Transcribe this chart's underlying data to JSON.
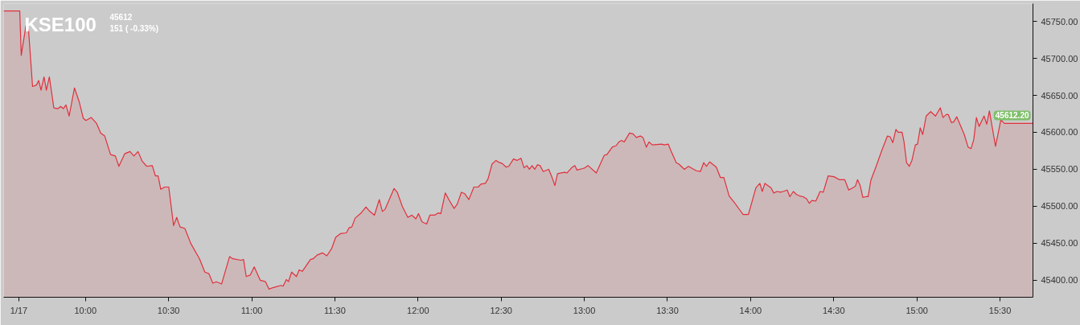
{
  "chart_data": {
    "type": "area",
    "title": "KSE100",
    "annotations": [
      "45612",
      "151 ( -0.33%)",
      {
        "text": "45612.20",
        "x": 15.698,
        "y": 45612
      }
    ],
    "color": "#e0303c",
    "x": [
      9.508,
      9.605,
      9.614,
      9.642,
      9.658,
      9.682,
      9.706,
      9.719,
      9.733,
      9.751,
      9.765,
      9.783,
      9.81,
      9.835,
      9.851,
      9.867,
      9.883,
      9.902,
      9.934,
      9.963,
      9.987,
      10.003,
      10.035,
      10.067,
      10.092,
      10.116,
      10.151,
      10.18,
      10.201,
      10.236,
      10.268,
      10.292,
      10.316,
      10.341,
      10.369,
      10.402,
      10.421,
      10.437,
      10.453,
      10.477,
      10.501,
      10.53,
      10.549,
      10.569,
      10.598,
      10.633,
      10.686,
      10.718,
      10.742,
      10.766,
      10.787,
      10.819,
      10.867,
      10.887,
      10.935,
      10.951,
      10.967,
      10.991,
      11.015,
      11.051,
      11.083,
      11.104,
      11.128,
      11.176,
      11.189,
      11.208,
      11.221,
      11.24,
      11.269,
      11.285,
      11.304,
      11.353,
      11.369,
      11.393,
      11.425,
      11.452,
      11.481,
      11.505,
      11.533,
      11.569,
      11.586,
      11.602,
      11.622,
      11.658,
      11.687,
      11.706,
      11.738,
      11.767,
      11.786,
      11.802,
      11.856,
      11.875,
      11.907,
      11.939,
      11.963,
      11.987,
      12.003,
      12.024,
      12.052,
      12.071,
      12.1,
      12.121,
      12.137,
      12.164,
      12.188,
      12.217,
      12.236,
      12.261,
      12.281,
      12.306,
      12.336,
      12.362,
      12.378,
      12.405,
      12.421,
      12.445,
      12.469,
      12.49,
      12.506,
      12.53,
      12.546,
      12.574,
      12.595,
      12.619,
      12.638,
      12.654,
      12.67,
      12.686,
      12.702,
      12.718,
      12.734,
      12.753,
      12.786,
      12.806,
      12.823,
      12.839,
      12.882,
      12.895,
      12.924,
      12.943,
      12.956,
      12.991,
      13.004,
      13.023,
      13.072,
      13.096,
      13.12,
      13.136,
      13.168,
      13.192,
      13.208,
      13.224,
      13.24,
      13.256,
      13.272,
      13.293,
      13.313,
      13.337,
      13.353,
      13.373,
      13.389,
      13.409,
      13.465,
      13.481,
      13.505,
      13.521,
      13.553,
      13.569,
      13.602,
      13.626,
      13.674,
      13.698,
      13.718,
      13.734,
      13.754,
      13.794,
      13.818,
      13.839,
      13.871,
      13.906,
      13.935,
      13.955,
      13.987,
      14.032,
      14.056,
      14.07,
      14.086,
      14.123,
      14.139,
      14.16,
      14.18,
      14.196,
      14.22,
      14.236,
      14.257,
      14.276,
      14.295,
      14.316,
      14.337,
      14.353,
      14.369,
      14.392,
      14.418,
      14.437,
      14.466,
      14.501,
      14.533,
      14.566,
      14.59,
      14.614,
      14.63,
      14.643,
      14.659,
      14.675,
      14.694,
      14.707,
      14.723,
      14.755,
      14.79,
      14.823,
      14.839,
      14.855,
      14.874,
      14.887,
      14.911,
      14.922,
      14.938,
      14.954,
      14.97,
      14.991,
      15.004,
      15.02,
      15.035,
      15.056,
      15.083,
      15.112,
      15.141,
      15.157,
      15.176,
      15.189,
      15.208,
      15.221,
      15.24,
      15.285,
      15.308,
      15.326,
      15.342,
      15.358,
      15.374,
      15.404,
      15.42,
      15.436,
      15.473,
      15.505,
      15.526,
      15.698
    ],
    "values": [
      45764,
      45764,
      45704,
      45744,
      45738,
      45662,
      45664,
      45670,
      45657,
      45675,
      45657,
      45675,
      45633,
      45632,
      45635,
      45632,
      45637,
      45622,
      45660,
      45641,
      45619,
      45616,
      45620,
      45612,
      45599,
      45595,
      45570,
      45568,
      45554,
      45571,
      45574,
      45568,
      45574,
      45561,
      45554,
      45555,
      45541,
      45541,
      45523,
      45526,
      45526,
      45474,
      45485,
      45472,
      45470,
      45450,
      45429,
      45411,
      45409,
      45396,
      45398,
      45395,
      45432,
      45429,
      45427,
      45428,
      45405,
      45407,
      45418,
      45400,
      45398,
      45388,
      45390,
      45393,
      45392,
      45401,
      45398,
      45411,
      45405,
      45414,
      45412,
      45428,
      45429,
      45434,
      45437,
      45433,
      45443,
      45458,
      45463,
      45464,
      45471,
      45472,
      45484,
      45491,
      45499,
      45494,
      45488,
      45509,
      45493,
      45496,
      45524,
      45519,
      45499,
      45485,
      45488,
      45483,
      45490,
      45479,
      45476,
      45488,
      45488,
      45491,
      45490,
      45518,
      45508,
      45497,
      45503,
      45519,
      45517,
      45509,
      45526,
      45526,
      45530,
      45531,
      45537,
      45557,
      45562,
      45559,
      45558,
      45553,
      45554,
      45564,
      45562,
      45565,
      45552,
      45555,
      45550,
      45555,
      45550,
      45556,
      45555,
      45547,
      45550,
      45539,
      45528,
      45544,
      45546,
      45545,
      45552,
      45555,
      45549,
      45551,
      45552,
      45555,
      45545,
      45557,
      45569,
      45570,
      45580,
      45582,
      45587,
      45589,
      45587,
      45593,
      45599,
      45598,
      45593,
      45595,
      45593,
      45580,
      45587,
      45583,
      45584,
      45583,
      45584,
      45575,
      45559,
      45557,
      45550,
      45554,
      45548,
      45547,
      45559,
      45554,
      45560,
      45553,
      45539,
      45539,
      45514,
      45504,
      45495,
      45489,
      45489,
      45525,
      45531,
      45520,
      45531,
      45525,
      45518,
      45520,
      45519,
      45520,
      45522,
      45513,
      45520,
      45516,
      45514,
      45513,
      45510,
      45504,
      45508,
      45507,
      45520,
      45519,
      45541,
      45540,
      45536,
      45536,
      45522,
      45525,
      45527,
      45536,
      45528,
      45512,
      45513,
      45513,
      45535,
      45554,
      45576,
      45595,
      45594,
      45586,
      45604,
      45600,
      45600,
      45588,
      45559,
      45554,
      45562,
      45583,
      45584,
      45606,
      45597,
      45622,
      45628,
      45622,
      45633,
      45620,
      45624,
      45624,
      45613,
      45614,
      45621,
      45597,
      45580,
      45578,
      45590,
      45620,
      45608,
      45622,
      45611,
      45629,
      45581,
      45617,
      45612,
      45612
    ],
    "xlim": [
      9.508,
      15.698
    ],
    "ylim": [
      45377,
      45774
    ],
    "xticks": [
      {
        "value": 9.6,
        "label": "1/17"
      },
      {
        "value": 10,
        "label": "10:00"
      },
      {
        "value": 10.5,
        "label": "10:30"
      },
      {
        "value": 11,
        "label": "11:00"
      },
      {
        "value": 11.5,
        "label": "11:30"
      },
      {
        "value": 12,
        "label": "12:00"
      },
      {
        "value": 12.5,
        "label": "12:30"
      },
      {
        "value": 13,
        "label": "13:00"
      },
      {
        "value": 13.5,
        "label": "13:30"
      },
      {
        "value": 14,
        "label": "14:00"
      },
      {
        "value": 14.5,
        "label": "14:30"
      },
      {
        "value": 15,
        "label": "15:00"
      },
      {
        "value": 15.5,
        "label": "15:30"
      }
    ],
    "yticks": [
      {
        "value": 45400,
        "label": "45400.00"
      },
      {
        "value": 45450,
        "label": "45450.00"
      },
      {
        "value": 45500,
        "label": "45500.00"
      },
      {
        "value": 45550,
        "label": "45550.00"
      },
      {
        "value": 45600,
        "label": "45600.00"
      },
      {
        "value": 45650,
        "label": "45650.00"
      },
      {
        "value": 45700,
        "label": "45700.00"
      },
      {
        "value": 45750,
        "label": "45750.00"
      }
    ],
    "grid": false,
    "line_style": "solid"
  }
}
